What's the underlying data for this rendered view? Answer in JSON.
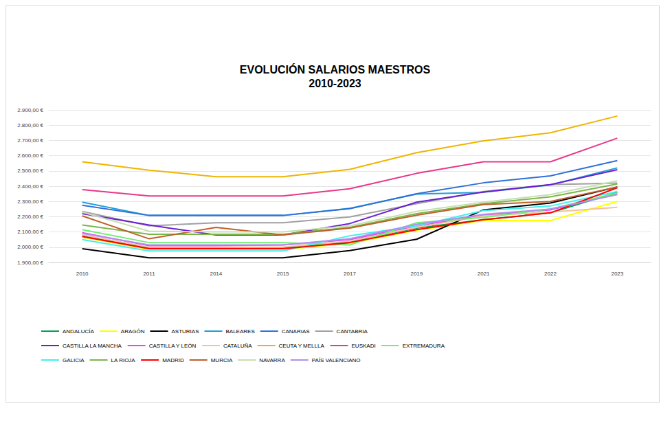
{
  "chart_data": {
    "type": "line",
    "title": "EVOLUCIÓN SALARIOS MAESTROS",
    "subtitle": "2010-2023",
    "categories": [
      "2010",
      "2011",
      "2014",
      "2015",
      "2017",
      "2019",
      "2021",
      "2022",
      "2023"
    ],
    "ylim": [
      1900,
      2900
    ],
    "yticks": [
      {
        "value": 1900,
        "label": "1.900,00 €"
      },
      {
        "value": 2000,
        "label": "2.000,00 €"
      },
      {
        "value": 2100,
        "label": "2.100,00 €"
      },
      {
        "value": 2200,
        "label": "2.200,00 €"
      },
      {
        "value": 2300,
        "label": "2.300,00 €"
      },
      {
        "value": 2400,
        "label": "2.400,00 €"
      },
      {
        "value": 2500,
        "label": "2.500,00 €"
      },
      {
        "value": 2600,
        "label": "2.600,00 €"
      },
      {
        "value": 2700,
        "label": "2.700,00 €"
      },
      {
        "value": 2800,
        "label": "2.800,00 €"
      },
      {
        "value": 2900,
        "label": "2.900,00 €"
      }
    ],
    "grid": true,
    "legend": "bottom",
    "series": [
      {
        "name": "ANDALUCÍA",
        "color": "#00a050",
        "values": [
          2075,
          1995,
          1995,
          1995,
          2035,
          2125,
          2180,
          2225,
          2360
        ]
      },
      {
        "name": "ARAGÓN",
        "color": "#ffff00",
        "values": [
          2065,
          1985,
          1985,
          1985,
          2025,
          2110,
          2175,
          2175,
          2300
        ]
      },
      {
        "name": "ASTURIAS",
        "color": "#000000",
        "values": [
          1990,
          1930,
          1930,
          1930,
          1978,
          2052,
          2245,
          2290,
          2395
        ]
      },
      {
        "name": "BALEARES",
        "color": "#1e9fd8",
        "values": [
          2295,
          2208,
          2208,
          2208,
          2255,
          2348,
          2360,
          2408,
          2520
        ]
      },
      {
        "name": "CANARIAS",
        "color": "#2f6fd8",
        "values": [
          2275,
          2208,
          2208,
          2208,
          2252,
          2350,
          2422,
          2468,
          2568
        ]
      },
      {
        "name": "CANTABRIA",
        "color": "#a0a0a0",
        "values": [
          2235,
          2140,
          2160,
          2160,
          2198,
          2285,
          2365,
          2410,
          2420
        ]
      },
      {
        "name": "CASTILLA LA MANCHA",
        "color": "#6a1fd0",
        "values": [
          2220,
          2145,
          2080,
          2080,
          2155,
          2295,
          2362,
          2410,
          2508
        ]
      },
      {
        "name": "CASTILLA Y LEÓN",
        "color": "#f040f0",
        "values": [
          2095,
          2010,
          2010,
          2015,
          2050,
          2140,
          2210,
          2245,
          2350
        ]
      },
      {
        "name": "CATALUÑA",
        "color": "#f4c0a0",
        "values": [
          2080,
          2000,
          2000,
          2000,
          2040,
          2130,
          2205,
          2230,
          2262
        ]
      },
      {
        "name": "CEUTA Y MELLLA",
        "color": "#f0b400",
        "values": [
          2560,
          2505,
          2462,
          2462,
          2510,
          2620,
          2697,
          2750,
          2860
        ]
      },
      {
        "name": "EUSKADI",
        "color": "#e8388a",
        "values": [
          2378,
          2336,
          2336,
          2336,
          2383,
          2484,
          2560,
          2560,
          2715
        ]
      },
      {
        "name": "EXTREMADURA",
        "color": "#70f070",
        "values": [
          2115,
          2030,
          2030,
          2030,
          2015,
          2160,
          2195,
          2250,
          2355
        ]
      },
      {
        "name": "GALICIA",
        "color": "#40f0f0",
        "values": [
          2050,
          1975,
          1975,
          1975,
          2075,
          2140,
          2240,
          2270,
          2365
        ]
      },
      {
        "name": "LA RIOJA",
        "color": "#7ab648",
        "values": [
          2145,
          2085,
          2085,
          2085,
          2130,
          2220,
          2285,
          2330,
          2415
        ]
      },
      {
        "name": "MADRID",
        "color": "#ff0000",
        "values": [
          2070,
          1990,
          1990,
          1990,
          2030,
          2115,
          2180,
          2225,
          2390
        ]
      },
      {
        "name": "MURCIA",
        "color": "#c0602a",
        "values": [
          2205,
          2055,
          2130,
          2080,
          2125,
          2210,
          2280,
          2300,
          2395
        ]
      },
      {
        "name": "NAVARRA",
        "color": "#c6dfb0",
        "values": [
          2230,
          2105,
          2100,
          2100,
          2140,
          2235,
          2295,
          2345,
          2435
        ]
      },
      {
        "name": "PAÍS VALENCIANO",
        "color": "#b090f0",
        "values": [
          2090,
          2015,
          2015,
          2015,
          2055,
          2150,
          2215,
          2250,
          2345
        ]
      }
    ]
  }
}
